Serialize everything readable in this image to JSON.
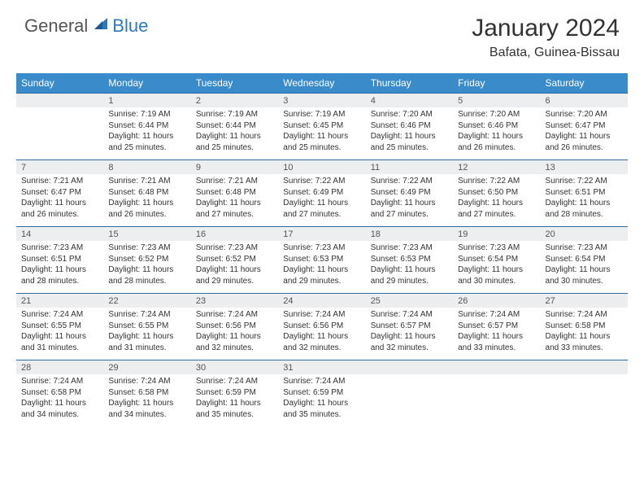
{
  "logo": {
    "text1": "General",
    "text2": "Blue"
  },
  "title": "January 2024",
  "location": "Bafata, Guinea-Bissau",
  "colors": {
    "header_bg": "#3a8bc9",
    "daynum_bg": "#eceeef",
    "border": "#2e6da4",
    "logo_blue": "#2a7ac0",
    "text": "#333333"
  },
  "day_names": [
    "Sunday",
    "Monday",
    "Tuesday",
    "Wednesday",
    "Thursday",
    "Friday",
    "Saturday"
  ],
  "weeks": [
    {
      "nums": [
        "",
        "1",
        "2",
        "3",
        "4",
        "5",
        "6"
      ],
      "cells": [
        null,
        {
          "sr": "Sunrise: 7:19 AM",
          "ss": "Sunset: 6:44 PM",
          "d1": "Daylight: 11 hours",
          "d2": "and 25 minutes."
        },
        {
          "sr": "Sunrise: 7:19 AM",
          "ss": "Sunset: 6:44 PM",
          "d1": "Daylight: 11 hours",
          "d2": "and 25 minutes."
        },
        {
          "sr": "Sunrise: 7:19 AM",
          "ss": "Sunset: 6:45 PM",
          "d1": "Daylight: 11 hours",
          "d2": "and 25 minutes."
        },
        {
          "sr": "Sunrise: 7:20 AM",
          "ss": "Sunset: 6:46 PM",
          "d1": "Daylight: 11 hours",
          "d2": "and 25 minutes."
        },
        {
          "sr": "Sunrise: 7:20 AM",
          "ss": "Sunset: 6:46 PM",
          "d1": "Daylight: 11 hours",
          "d2": "and 26 minutes."
        },
        {
          "sr": "Sunrise: 7:20 AM",
          "ss": "Sunset: 6:47 PM",
          "d1": "Daylight: 11 hours",
          "d2": "and 26 minutes."
        }
      ]
    },
    {
      "nums": [
        "7",
        "8",
        "9",
        "10",
        "11",
        "12",
        "13"
      ],
      "cells": [
        {
          "sr": "Sunrise: 7:21 AM",
          "ss": "Sunset: 6:47 PM",
          "d1": "Daylight: 11 hours",
          "d2": "and 26 minutes."
        },
        {
          "sr": "Sunrise: 7:21 AM",
          "ss": "Sunset: 6:48 PM",
          "d1": "Daylight: 11 hours",
          "d2": "and 26 minutes."
        },
        {
          "sr": "Sunrise: 7:21 AM",
          "ss": "Sunset: 6:48 PM",
          "d1": "Daylight: 11 hours",
          "d2": "and 27 minutes."
        },
        {
          "sr": "Sunrise: 7:22 AM",
          "ss": "Sunset: 6:49 PM",
          "d1": "Daylight: 11 hours",
          "d2": "and 27 minutes."
        },
        {
          "sr": "Sunrise: 7:22 AM",
          "ss": "Sunset: 6:49 PM",
          "d1": "Daylight: 11 hours",
          "d2": "and 27 minutes."
        },
        {
          "sr": "Sunrise: 7:22 AM",
          "ss": "Sunset: 6:50 PM",
          "d1": "Daylight: 11 hours",
          "d2": "and 27 minutes."
        },
        {
          "sr": "Sunrise: 7:22 AM",
          "ss": "Sunset: 6:51 PM",
          "d1": "Daylight: 11 hours",
          "d2": "and 28 minutes."
        }
      ]
    },
    {
      "nums": [
        "14",
        "15",
        "16",
        "17",
        "18",
        "19",
        "20"
      ],
      "cells": [
        {
          "sr": "Sunrise: 7:23 AM",
          "ss": "Sunset: 6:51 PM",
          "d1": "Daylight: 11 hours",
          "d2": "and 28 minutes."
        },
        {
          "sr": "Sunrise: 7:23 AM",
          "ss": "Sunset: 6:52 PM",
          "d1": "Daylight: 11 hours",
          "d2": "and 28 minutes."
        },
        {
          "sr": "Sunrise: 7:23 AM",
          "ss": "Sunset: 6:52 PM",
          "d1": "Daylight: 11 hours",
          "d2": "and 29 minutes."
        },
        {
          "sr": "Sunrise: 7:23 AM",
          "ss": "Sunset: 6:53 PM",
          "d1": "Daylight: 11 hours",
          "d2": "and 29 minutes."
        },
        {
          "sr": "Sunrise: 7:23 AM",
          "ss": "Sunset: 6:53 PM",
          "d1": "Daylight: 11 hours",
          "d2": "and 29 minutes."
        },
        {
          "sr": "Sunrise: 7:23 AM",
          "ss": "Sunset: 6:54 PM",
          "d1": "Daylight: 11 hours",
          "d2": "and 30 minutes."
        },
        {
          "sr": "Sunrise: 7:23 AM",
          "ss": "Sunset: 6:54 PM",
          "d1": "Daylight: 11 hours",
          "d2": "and 30 minutes."
        }
      ]
    },
    {
      "nums": [
        "21",
        "22",
        "23",
        "24",
        "25",
        "26",
        "27"
      ],
      "cells": [
        {
          "sr": "Sunrise: 7:24 AM",
          "ss": "Sunset: 6:55 PM",
          "d1": "Daylight: 11 hours",
          "d2": "and 31 minutes."
        },
        {
          "sr": "Sunrise: 7:24 AM",
          "ss": "Sunset: 6:55 PM",
          "d1": "Daylight: 11 hours",
          "d2": "and 31 minutes."
        },
        {
          "sr": "Sunrise: 7:24 AM",
          "ss": "Sunset: 6:56 PM",
          "d1": "Daylight: 11 hours",
          "d2": "and 32 minutes."
        },
        {
          "sr": "Sunrise: 7:24 AM",
          "ss": "Sunset: 6:56 PM",
          "d1": "Daylight: 11 hours",
          "d2": "and 32 minutes."
        },
        {
          "sr": "Sunrise: 7:24 AM",
          "ss": "Sunset: 6:57 PM",
          "d1": "Daylight: 11 hours",
          "d2": "and 32 minutes."
        },
        {
          "sr": "Sunrise: 7:24 AM",
          "ss": "Sunset: 6:57 PM",
          "d1": "Daylight: 11 hours",
          "d2": "and 33 minutes."
        },
        {
          "sr": "Sunrise: 7:24 AM",
          "ss": "Sunset: 6:58 PM",
          "d1": "Daylight: 11 hours",
          "d2": "and 33 minutes."
        }
      ]
    },
    {
      "nums": [
        "28",
        "29",
        "30",
        "31",
        "",
        "",
        ""
      ],
      "cells": [
        {
          "sr": "Sunrise: 7:24 AM",
          "ss": "Sunset: 6:58 PM",
          "d1": "Daylight: 11 hours",
          "d2": "and 34 minutes."
        },
        {
          "sr": "Sunrise: 7:24 AM",
          "ss": "Sunset: 6:58 PM",
          "d1": "Daylight: 11 hours",
          "d2": "and 34 minutes."
        },
        {
          "sr": "Sunrise: 7:24 AM",
          "ss": "Sunset: 6:59 PM",
          "d1": "Daylight: 11 hours",
          "d2": "and 35 minutes."
        },
        {
          "sr": "Sunrise: 7:24 AM",
          "ss": "Sunset: 6:59 PM",
          "d1": "Daylight: 11 hours",
          "d2": "and 35 minutes."
        },
        null,
        null,
        null
      ]
    }
  ]
}
